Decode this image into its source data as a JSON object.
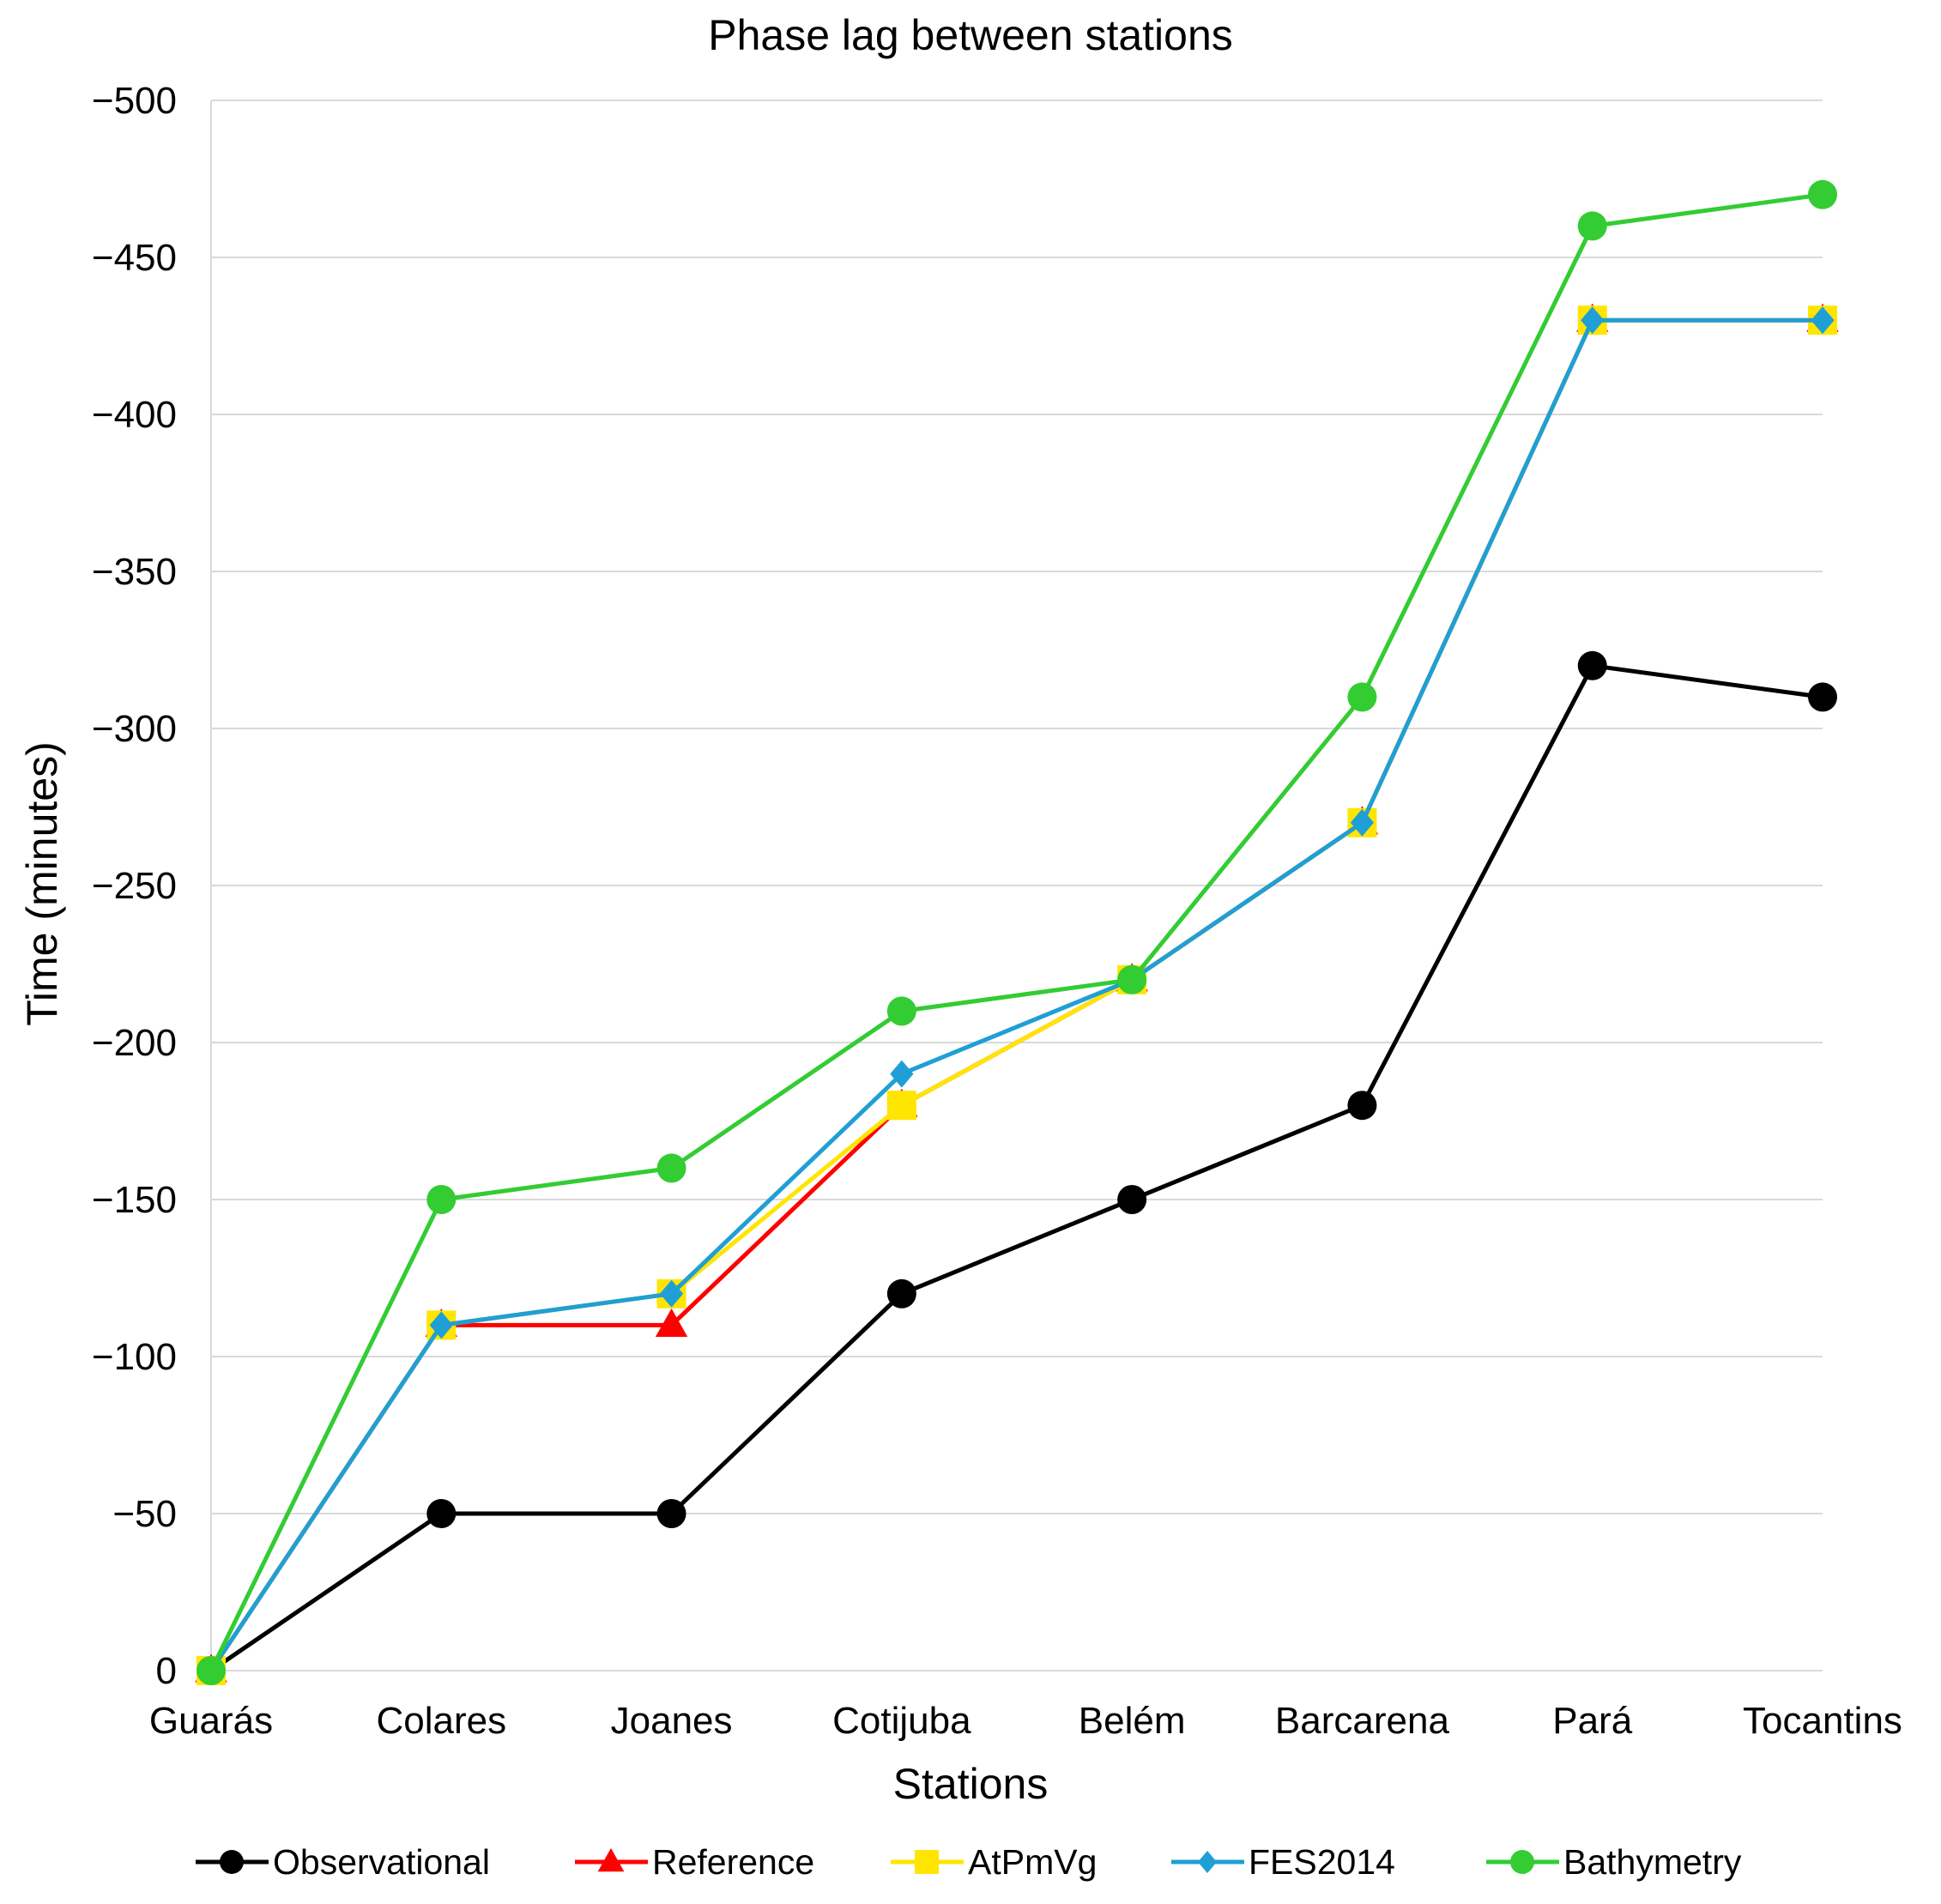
{
  "chart_data": {
    "type": "line",
    "title": "Phase lag between stations",
    "xlabel": "Stations",
    "ylabel": "Time (minutes)",
    "categories": [
      "Guarás",
      "Colares",
      "Joanes",
      "Cotijuba",
      "Belém",
      "Barcarena",
      "Pará",
      "Tocantins"
    ],
    "y_axis": {
      "min": 0,
      "max": -500,
      "step": -50,
      "direction": "negative values increase upward",
      "tick_labels": [
        "0",
        "−50",
        "−100",
        "−150",
        "−200",
        "−250",
        "−300",
        "−350",
        "−400",
        "−450",
        "−500"
      ]
    },
    "grid": "horizontal",
    "legend_position": "bottom",
    "series": [
      {
        "name": "Observational",
        "color": "#000000",
        "marker": "circle",
        "values": [
          0,
          -50,
          -50,
          -120,
          -150,
          -180,
          -320,
          -310
        ]
      },
      {
        "name": "Reference",
        "color": "#ff0000",
        "marker": "triangle",
        "values": [
          0,
          -110,
          -110,
          -180,
          -220,
          -270,
          -430,
          -430
        ]
      },
      {
        "name": "AtPmVg",
        "color": "#ffe500",
        "marker": "square",
        "values": [
          0,
          -110,
          -120,
          -180,
          -220,
          -270,
          -430,
          -430
        ]
      },
      {
        "name": "FES2014",
        "color": "#1f9fd5",
        "marker": "diamond",
        "values": [
          0,
          -110,
          -120,
          -190,
          -220,
          -270,
          -430,
          -430
        ]
      },
      {
        "name": "Bathymetry",
        "color": "#33cc33",
        "marker": "circle",
        "values": [
          0,
          -150,
          -160,
          -210,
          -220,
          -310,
          -460,
          -470
        ]
      }
    ]
  }
}
